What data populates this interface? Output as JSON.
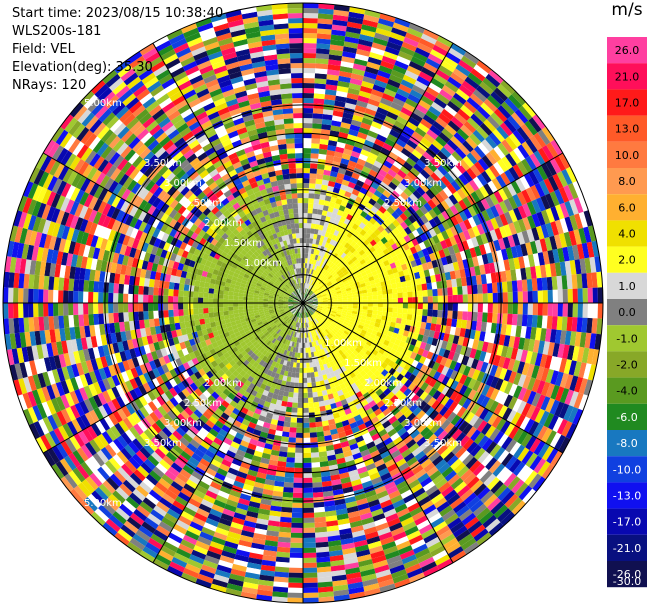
{
  "chart_data": {
    "type": "heatmap",
    "subtype": "radar-ppi",
    "header": {
      "start_time": "Start time: 2023/08/15 10:38:40",
      "instrument": "WLS200s-181",
      "field": "Field: VEL",
      "elevation": "Elevation(deg): 35.30",
      "nrays": "NRays: 120"
    },
    "range_rings_km": [
      0.5,
      1.0,
      1.5,
      2.0,
      2.5,
      3.0,
      3.5
    ],
    "range_labels": [
      {
        "text": "1.00km",
        "r": 1.0,
        "az": 315
      },
      {
        "text": "1.00km",
        "r": 1.0,
        "az": 135
      },
      {
        "text": "1.50km",
        "r": 1.5,
        "az": 315
      },
      {
        "text": "1.50km",
        "r": 1.5,
        "az": 135
      },
      {
        "text": "2.00km",
        "r": 2.0,
        "az": 315
      },
      {
        "text": "2.00km",
        "r": 2.0,
        "az": 225
      },
      {
        "text": "2.00km",
        "r": 2.0,
        "az": 135
      },
      {
        "text": "2.50km",
        "r": 2.5,
        "az": 315
      },
      {
        "text": "2.50km",
        "r": 2.5,
        "az": 45
      },
      {
        "text": "2.50km",
        "r": 2.5,
        "az": 225
      },
      {
        "text": "2.50km",
        "r": 2.5,
        "az": 135
      },
      {
        "text": "3.00km",
        "r": 3.0,
        "az": 315
      },
      {
        "text": "3.00km",
        "r": 3.0,
        "az": 45
      },
      {
        "text": "3.00km",
        "r": 3.0,
        "az": 225
      },
      {
        "text": "3.00km",
        "r": 3.0,
        "az": 135
      },
      {
        "text": "3.50km",
        "r": 3.5,
        "az": 315
      },
      {
        "text": "3.50km",
        "r": 3.5,
        "az": 45
      },
      {
        "text": "3.50km",
        "r": 3.5,
        "az": 225
      },
      {
        "text": "3.50km",
        "r": 3.5,
        "az": 135
      },
      {
        "text": "5.00km",
        "r": 5.0,
        "az": 315
      },
      {
        "text": "5.00km",
        "r": 5.0,
        "az": 225
      }
    ],
    "max_range_km": 5.3,
    "colorbar": {
      "unit": "m/s",
      "ticks": [
        "26.0",
        "21.0",
        "17.0",
        "13.0",
        "10.0",
        "8.0",
        "6.0",
        "4.0",
        "2.0",
        "1.0",
        "0.0",
        "-1.0",
        "-2.0",
        "-4.0",
        "-6.0",
        "-8.0",
        "-10.0",
        "-13.0",
        "-17.0",
        "-21.0",
        "-26.0",
        "-30.0"
      ],
      "colors": [
        "#ff3fa0",
        "#ff0f5a",
        "#ff1a1a",
        "#ff5a28",
        "#ff7a40",
        "#ff9a50",
        "#ffb030",
        "#f0e000",
        "#ffff20",
        "#d8d8d8",
        "#808080",
        "#a0c830",
        "#88a828",
        "#5a9a20",
        "#208a20",
        "#1878c0",
        "#1040e0",
        "#1010f0",
        "#0808b0",
        "#081080",
        "#101050"
      ]
    }
  }
}
